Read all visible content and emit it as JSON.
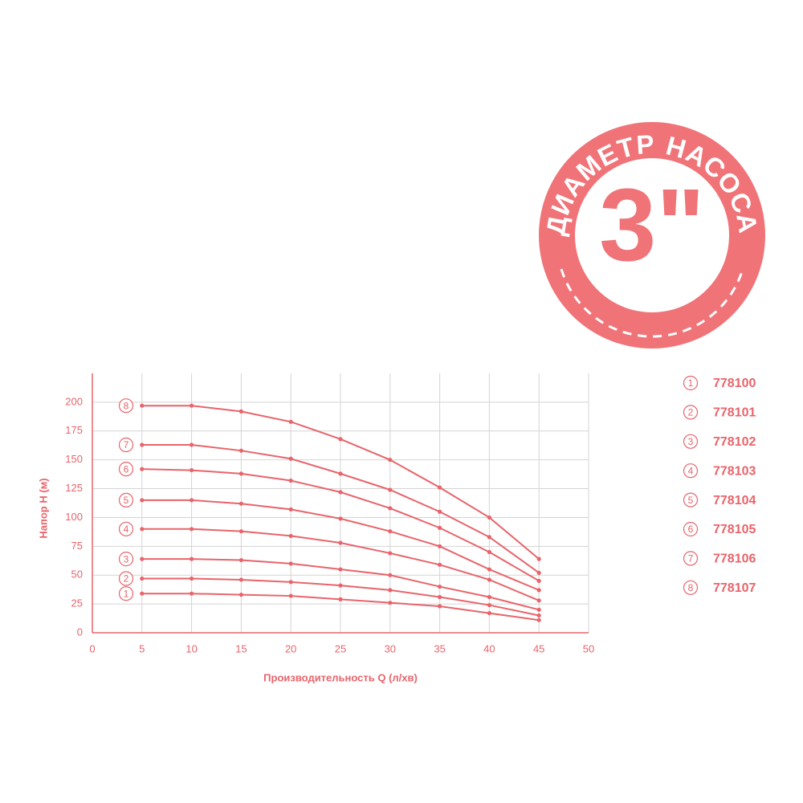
{
  "badge": {
    "text": "ДИАМЕТР НАСОСА",
    "size": "3\""
  },
  "chart_data": {
    "type": "line",
    "x_label": "Производительность Q (л/хв)",
    "y_label": "Напор Н (м)",
    "x": [
      5,
      10,
      15,
      20,
      25,
      30,
      35,
      40,
      45
    ],
    "xlim": [
      0,
      50
    ],
    "xticks": [
      0,
      5,
      10,
      15,
      20,
      25,
      30,
      35,
      40,
      45,
      50
    ],
    "ylim": [
      0,
      225
    ],
    "yticks": [
      0,
      25,
      50,
      75,
      100,
      125,
      150,
      175,
      200
    ],
    "grid": true,
    "color": "#e8646b",
    "series": [
      {
        "name": "778100",
        "label": "1",
        "values": [
          34,
          34,
          33,
          32,
          29,
          26,
          23,
          17,
          11
        ]
      },
      {
        "name": "778101",
        "label": "2",
        "values": [
          47,
          47,
          46,
          44,
          41,
          37,
          31,
          24,
          15
        ]
      },
      {
        "name": "778102",
        "label": "3",
        "values": [
          64,
          64,
          63,
          60,
          55,
          50,
          40,
          31,
          20
        ]
      },
      {
        "name": "778103",
        "label": "4",
        "values": [
          90,
          90,
          88,
          84,
          78,
          69,
          59,
          46,
          28
        ]
      },
      {
        "name": "778104",
        "label": "5",
        "values": [
          115,
          115,
          112,
          107,
          99,
          88,
          75,
          55,
          37
        ]
      },
      {
        "name": "778105",
        "label": "6",
        "values": [
          142,
          141,
          138,
          132,
          122,
          108,
          91,
          70,
          45
        ]
      },
      {
        "name": "778106",
        "label": "7",
        "values": [
          163,
          163,
          158,
          151,
          138,
          124,
          105,
          83,
          52
        ]
      },
      {
        "name": "778107",
        "label": "8",
        "values": [
          197,
          197,
          192,
          183,
          168,
          150,
          126,
          100,
          64
        ]
      }
    ]
  }
}
